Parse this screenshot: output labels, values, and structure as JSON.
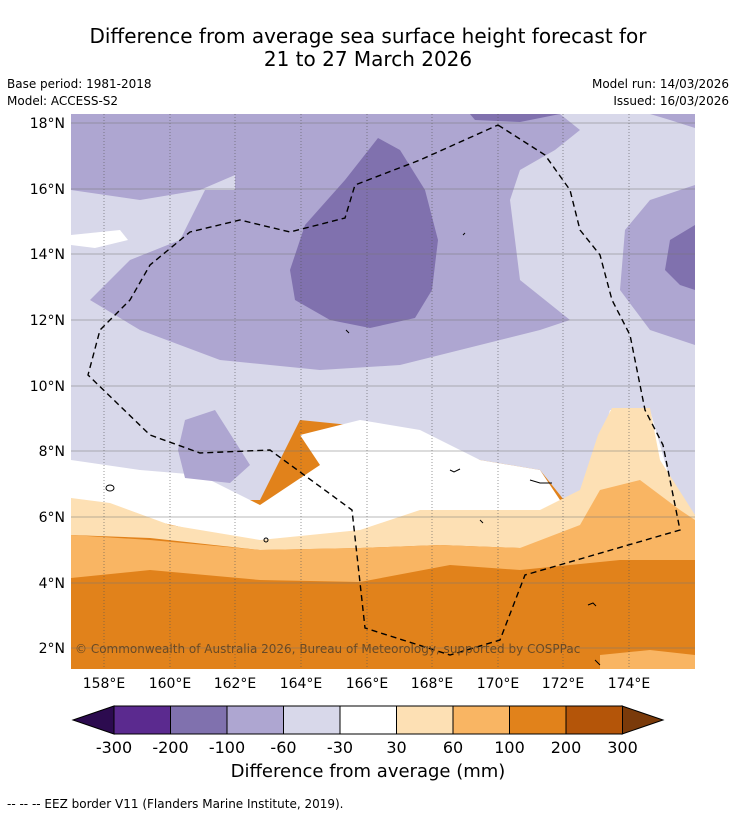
{
  "title": {
    "line1": "Difference from average sea surface height forecast for",
    "line2": "21 to 27 March 2026"
  },
  "meta": {
    "base_period": "Base period: 1981-2018",
    "model": "Model: ACCESS-S2",
    "model_run": "Model run: 14/03/2026",
    "issued": "Issued: 16/03/2026"
  },
  "map": {
    "lat_ticks": [
      "18°N",
      "16°N",
      "14°N",
      "12°N",
      "10°N",
      "8°N",
      "6°N",
      "4°N",
      "2°N"
    ],
    "lon_ticks": [
      "158°E",
      "160°E",
      "162°E",
      "164°E",
      "166°E",
      "168°E",
      "170°E",
      "172°E",
      "174°E"
    ],
    "copyright": "© Commonwealth of Australia 2026, Bureau of Meteorology, supported by COSPPac"
  },
  "colorbar": {
    "labels": [
      "-300",
      "-200",
      "-100",
      "-60",
      "-30",
      "30",
      "60",
      "100",
      "200",
      "300"
    ],
    "colors": [
      "#5b2a8f",
      "#8071ae",
      "#aea6d1",
      "#d8d8ea",
      "#ffffff",
      "#fde0b4",
      "#f9b563",
      "#e1821b",
      "#b45509"
    ],
    "under_color": "#2c0b4f",
    "over_color": "#7a3a0a",
    "title": "Difference from average (mm)"
  },
  "footnote": "--  --  -- EEZ border V11 (Flanders Marine Institute, 2019)."
}
